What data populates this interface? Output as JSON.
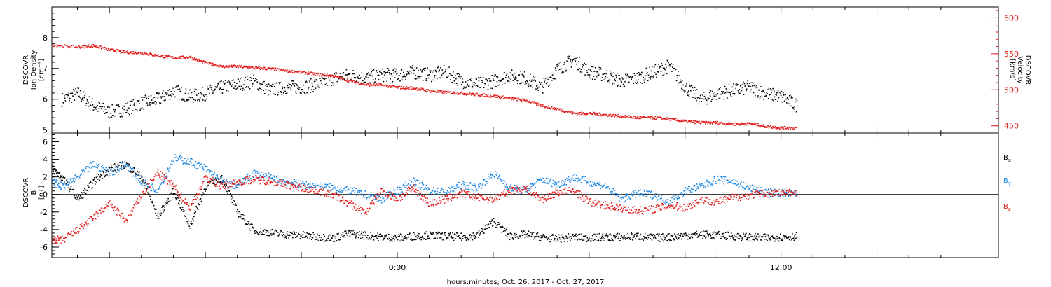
{
  "xlabel": "hours:minutes, Oct. 26, 2017 - Oct. 27, 2017",
  "chart_data": [
    {
      "type": "scatter",
      "panel": "top",
      "ylabel_left": [
        "DSCOVR",
        "Ion Density",
        "[cm⁻³]"
      ],
      "ylabel_right": [
        "DSCOVR",
        "Velocity",
        "[km/s]"
      ],
      "x_ticks": [
        {
          "h": 0,
          "label": "0:00"
        },
        {
          "h": 12,
          "label": "12:00"
        }
      ],
      "xlim_hours": [
        -10.8,
        18.8
      ],
      "ylim_left": [
        4.9,
        9.0
      ],
      "ylim_right": [
        440,
        615
      ],
      "yticks_left": [
        5,
        6,
        7,
        8
      ],
      "yticks_right": [
        450,
        500,
        550,
        600
      ],
      "series": [
        {
          "axis": "left",
          "color": "#000000",
          "x": [
            -10.5,
            -10.0,
            -9.5,
            -9.0,
            -8.5,
            -8.0,
            -7.5,
            -7.0,
            -6.5,
            -6.0,
            -5.5,
            -5.0,
            -4.5,
            -4.0,
            -3.5,
            -3.0,
            -2.5,
            -2.0,
            -1.5,
            -1.0,
            -0.5,
            0.0,
            0.5,
            1.0,
            1.5,
            2.0,
            2.5,
            3.0,
            3.5,
            4.0,
            4.5,
            5.0,
            5.5,
            6.0,
            6.5,
            7.0,
            7.5,
            8.0,
            8.5,
            9.0,
            9.5,
            10.0,
            10.5,
            11.0,
            11.5,
            12.0,
            12.5
          ],
          "y": [
            6.0,
            6.2,
            5.8,
            5.6,
            5.7,
            5.9,
            6.0,
            6.3,
            6.1,
            6.2,
            6.4,
            6.5,
            6.6,
            6.3,
            6.4,
            6.4,
            6.5,
            6.7,
            6.8,
            6.7,
            6.8,
            6.8,
            6.9,
            6.8,
            6.9,
            6.6,
            6.5,
            6.6,
            6.8,
            6.7,
            6.4,
            7.0,
            7.3,
            6.9,
            6.8,
            6.6,
            6.7,
            6.9,
            7.1,
            6.4,
            6.0,
            6.2,
            6.3,
            6.4,
            6.2,
            6.1,
            5.8
          ]
        },
        {
          "axis": "right",
          "color": "#e21b1b",
          "x": [
            -10.8,
            -10.0,
            -9.5,
            -9.0,
            -8.5,
            -8.0,
            -7.5,
            -7.0,
            -6.5,
            -6.0,
            -5.5,
            -5.0,
            -4.5,
            -4.0,
            -3.5,
            -3.0,
            -2.5,
            -2.0,
            -1.5,
            -1.0,
            -0.5,
            0.0,
            0.5,
            1.0,
            1.5,
            2.0,
            2.5,
            3.0,
            3.5,
            4.0,
            4.5,
            5.0,
            5.5,
            6.0,
            6.5,
            7.0,
            7.5,
            8.0,
            8.5,
            9.0,
            9.5,
            10.0,
            10.5,
            11.0,
            11.5,
            12.0,
            12.5
          ],
          "y": [
            563,
            560,
            562,
            556,
            553,
            552,
            548,
            545,
            546,
            538,
            533,
            533,
            531,
            530,
            527,
            525,
            522,
            520,
            513,
            508,
            507,
            504,
            503,
            499,
            497,
            496,
            494,
            492,
            489,
            486,
            479,
            474,
            468,
            468,
            466,
            464,
            462,
            462,
            460,
            457,
            455,
            455,
            453,
            454,
            450,
            448,
            448
          ]
        }
      ]
    },
    {
      "type": "scatter",
      "panel": "bottom",
      "ylabel_left": [
        "DSCOVR",
        "B",
        "[nT]"
      ],
      "x_ticks": [
        {
          "h": 0,
          "label": "0:00"
        },
        {
          "h": 12,
          "label": "12:00"
        }
      ],
      "xlim_hours": [
        -10.8,
        18.8
      ],
      "ylim": [
        -7.2,
        7.0
      ],
      "yticks": [
        -6,
        -4,
        -2,
        0,
        2,
        4,
        6
      ],
      "zero_line": true,
      "series": [
        {
          "name": "Bx",
          "color": "#000000",
          "x": [
            -10.8,
            -10.5,
            -10.0,
            -9.5,
            -9.0,
            -8.5,
            -8.0,
            -7.5,
            -7.0,
            -6.5,
            -6.0,
            -5.5,
            -5.0,
            -4.5,
            -4.0,
            -3.5,
            -3.0,
            -2.5,
            -2.0,
            -1.5,
            -1.0,
            -0.5,
            0.0,
            0.5,
            1.0,
            1.5,
            2.0,
            2.5,
            3.0,
            3.5,
            4.0,
            4.5,
            5.0,
            5.5,
            6.0,
            6.5,
            7.0,
            7.5,
            8.0,
            8.5,
            9.0,
            9.5,
            10.0,
            10.5,
            11.0,
            11.5,
            12.0,
            12.5
          ],
          "y": [
            3.0,
            2.0,
            -0.5,
            1.5,
            3.0,
            3.5,
            2.0,
            -2.5,
            0.5,
            -3.5,
            1.0,
            2.0,
            -2.0,
            -4.0,
            -4.3,
            -4.5,
            -4.6,
            -4.8,
            -4.9,
            -4.4,
            -4.6,
            -4.8,
            -4.9,
            -4.7,
            -4.6,
            -4.7,
            -4.8,
            -4.6,
            -3.0,
            -4.7,
            -4.5,
            -4.8,
            -5.0,
            -4.8,
            -4.9,
            -4.8,
            -4.8,
            -4.7,
            -4.9,
            -4.8,
            -4.6,
            -4.5,
            -4.6,
            -4.7,
            -4.8,
            -4.9,
            -4.8,
            -4.7
          ]
        },
        {
          "name": "By",
          "color": "#1e88e5",
          "x": [
            -10.8,
            -10.5,
            -10.0,
            -9.5,
            -9.0,
            -8.5,
            -8.0,
            -7.5,
            -7.0,
            -6.5,
            -6.0,
            -5.5,
            -5.0,
            -4.5,
            -4.0,
            -3.5,
            -3.0,
            -2.5,
            -2.0,
            -1.5,
            -1.0,
            -0.5,
            0.0,
            0.5,
            1.0,
            1.5,
            2.0,
            2.5,
            3.0,
            3.5,
            4.0,
            4.5,
            5.0,
            5.5,
            6.0,
            6.5,
            7.0,
            7.5,
            8.0,
            8.5,
            9.0,
            9.5,
            10.0,
            10.5,
            11.0,
            11.5,
            12.0,
            12.5
          ],
          "y": [
            1.5,
            1.0,
            2.0,
            3.5,
            2.5,
            3.5,
            1.5,
            0.5,
            4.2,
            3.8,
            3.0,
            1.5,
            1.0,
            2.5,
            2.0,
            1.5,
            1.2,
            1.0,
            0.8,
            0.5,
            0.0,
            -0.5,
            0.5,
            1.5,
            0.5,
            0.3,
            1.2,
            0.8,
            2.5,
            0.8,
            0.5,
            1.8,
            1.2,
            2.0,
            1.5,
            1.0,
            -0.5,
            0.2,
            0.0,
            -0.8,
            0.5,
            1.0,
            1.8,
            1.5,
            0.8,
            0.3,
            0.2,
            0.1
          ]
        },
        {
          "name": "Bz",
          "color": "#e21b1b",
          "x": [
            -10.8,
            -10.5,
            -10.0,
            -9.5,
            -9.0,
            -8.5,
            -8.0,
            -7.5,
            -7.0,
            -6.5,
            -6.0,
            -5.5,
            -5.0,
            -4.5,
            -4.0,
            -3.5,
            -3.0,
            -2.5,
            -2.0,
            -1.5,
            -1.0,
            -0.5,
            0.0,
            0.5,
            1.0,
            1.5,
            2.0,
            2.5,
            3.0,
            3.5,
            4.0,
            4.5,
            5.0,
            5.5,
            6.0,
            6.5,
            7.0,
            7.5,
            8.0,
            8.5,
            9.0,
            9.5,
            10.0,
            10.5,
            11.0,
            11.5,
            12.0,
            12.5
          ],
          "y": [
            -5.0,
            -5.2,
            -4.0,
            -2.5,
            -1.0,
            -3.0,
            0.0,
            2.5,
            1.0,
            -1.5,
            2.0,
            1.0,
            1.5,
            1.8,
            1.6,
            1.2,
            0.8,
            0.5,
            0.0,
            -1.0,
            -2.0,
            0.5,
            -0.5,
            0.8,
            -1.0,
            -0.5,
            0.2,
            -0.3,
            -0.5,
            0.5,
            0.8,
            -0.5,
            0.3,
            0.5,
            -0.8,
            -1.2,
            -1.5,
            -1.8,
            -1.6,
            -1.2,
            -1.5,
            -0.5,
            -0.8,
            -0.3,
            0.0,
            0.2,
            0.2,
            0.3
          ]
        }
      ],
      "legend": [
        {
          "base": "B",
          "sub": "x",
          "color": "#000000"
        },
        {
          "base": "B",
          "sub": "y",
          "color": "#1e88e5"
        },
        {
          "base": "B",
          "sub": "z",
          "color": "#e21b1b"
        }
      ]
    }
  ]
}
